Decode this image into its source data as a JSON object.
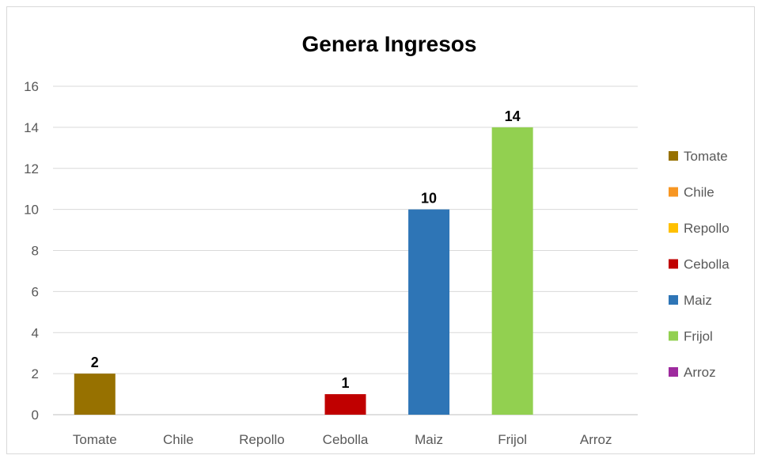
{
  "chart_data": {
    "type": "bar",
    "title": "Genera Ingresos",
    "categories": [
      "Tomate",
      "Chile",
      "Repollo",
      "Cebolla",
      "Maiz",
      "Frijol",
      "Arroz"
    ],
    "values": [
      2,
      0,
      0,
      1,
      10,
      14,
      0
    ],
    "data_labels": [
      "2",
      "",
      "",
      "1",
      "10",
      "14",
      ""
    ],
    "colors": [
      "#977100",
      "#f79622",
      "#ffc000",
      "#c00000",
      "#2e75b6",
      "#92d050",
      "#9e2a9e"
    ],
    "ylim": [
      0,
      16
    ],
    "yticks": [
      0,
      2,
      4,
      6,
      8,
      10,
      12,
      14,
      16
    ],
    "grid": true,
    "legend": "right"
  }
}
